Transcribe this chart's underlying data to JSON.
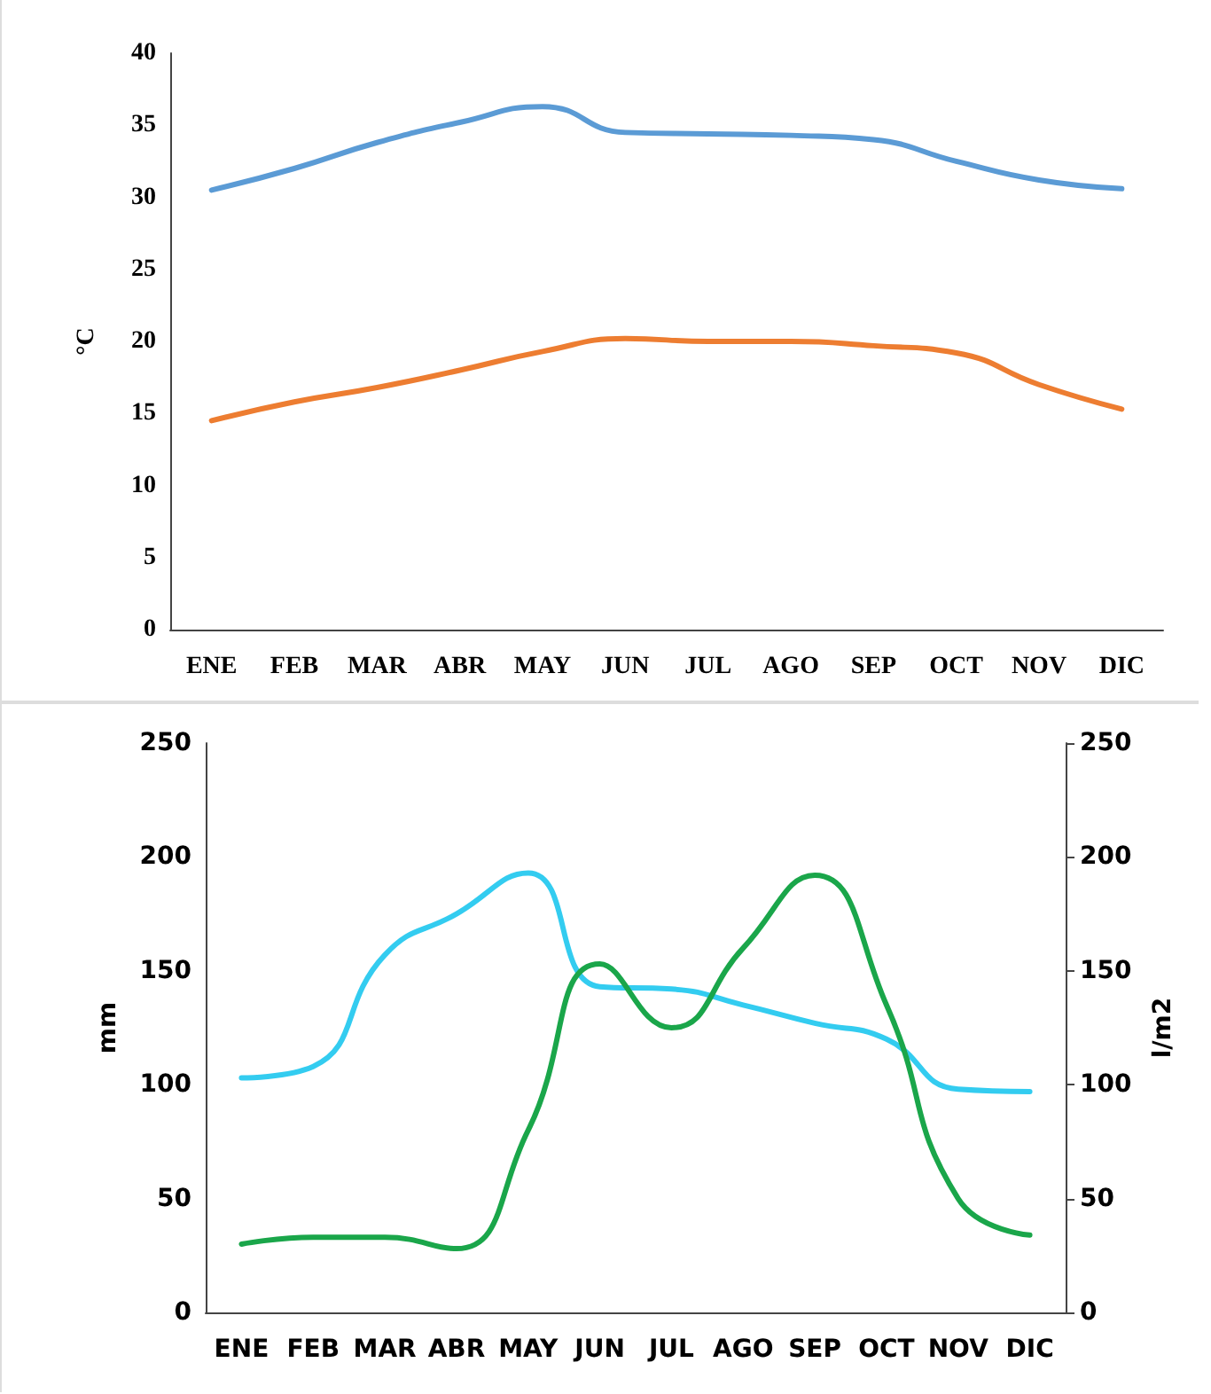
{
  "chart_data": [
    {
      "type": "line",
      "ylabel": "°C",
      "categories": [
        "ENE",
        "FEB",
        "MAR",
        "ABR",
        "MAY",
        "JUN",
        "JUL",
        "AGO",
        "SEP",
        "OCT",
        "NOV",
        "DIC"
      ],
      "series": [
        {
          "color": "#5b9bd5",
          "values": [
            30.5,
            32,
            33.8,
            35.2,
            36.3,
            34.5,
            34.4,
            34.3,
            34,
            32.5,
            31.2,
            30.6
          ]
        },
        {
          "color": "#ed7d31",
          "values": [
            14.5,
            15.8,
            16.8,
            18,
            19.3,
            20.2,
            20,
            20,
            19.7,
            19.2,
            17,
            15.3
          ]
        }
      ],
      "ylim": [
        0,
        40
      ],
      "yticks": [
        0,
        5,
        10,
        15,
        20,
        25,
        30,
        35,
        40
      ],
      "grid": false,
      "marker": "none"
    },
    {
      "type": "line",
      "ylabel": "mm",
      "y2label": "l/m2",
      "categories": [
        "ENE",
        "FEB",
        "MAR",
        "ABR",
        "MAY",
        "JUN",
        "JUL",
        "AGO",
        "SEP",
        "OCT",
        "NOV",
        "DIC"
      ],
      "series": [
        {
          "color": "#33ccf0",
          "values": [
            103,
            108,
            157,
            175,
            193,
            143,
            142,
            135,
            127,
            120,
            98,
            97
          ]
        },
        {
          "color": "#1aa64a",
          "values": [
            30,
            33,
            33,
            28,
            80,
            153,
            125,
            160,
            192,
            135,
            50,
            34
          ]
        }
      ],
      "ylim": [
        0,
        250
      ],
      "yticks": [
        0,
        50,
        100,
        150,
        200,
        250
      ],
      "y2lim": [
        0,
        250
      ],
      "y2ticks": [
        0,
        50,
        100,
        150,
        200,
        250
      ],
      "grid": false,
      "marker": "none"
    }
  ]
}
